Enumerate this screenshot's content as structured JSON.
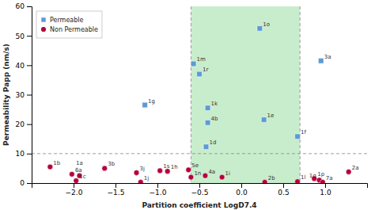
{
  "chart_data": {
    "type": "scatter",
    "x_label": "Partition coefficient LogD7.4",
    "y_label": "Permeability Papp (nm/s)",
    "xlim": [
      -2.5,
      1.5
    ],
    "ylim": [
      0,
      60
    ],
    "xticks": [
      {
        "value": -2.0,
        "label": "−2.0"
      },
      {
        "value": -1.5,
        "label": "−1.5"
      },
      {
        "value": -1.0,
        "label": "−1.0"
      },
      {
        "value": -0.5,
        "label": "−0.5"
      },
      {
        "value": 0.0,
        "label": "0.0"
      },
      {
        "value": 0.5,
        "label": "0.5"
      },
      {
        "value": 1.0,
        "label": "1.0"
      }
    ],
    "yticks": [
      0,
      10,
      20,
      30,
      40,
      50,
      60
    ],
    "grid": false,
    "legend": "upper left",
    "hlines": [
      10
    ],
    "vlines": [
      -0.6,
      0.7
    ],
    "span": {
      "x": [
        -0.6,
        0.7
      ],
      "color": "#c8edcc"
    },
    "series": [
      {
        "name": "Permeable",
        "color": "#5b9bd5",
        "marker": "square",
        "x": [
          -1.15,
          -0.57,
          -0.5,
          -0.4,
          -0.4,
          -0.42,
          0.22,
          0.27,
          0.67,
          0.95
        ],
        "values": [
          26.5,
          40.5,
          37.0,
          25.5,
          20.5,
          12.3,
          52.5,
          21.5,
          15.8,
          41.5
        ],
        "labels": [
          "1g",
          "1m",
          "1r",
          "1k",
          "4b",
          "1d",
          "1o",
          "1e",
          "1f",
          "3a"
        ]
      },
      {
        "name": "Non Permeable",
        "color": "#b5003a",
        "marker": "circle",
        "x": [
          -2.28,
          -2.02,
          -1.93,
          -1.97,
          -1.63,
          -1.25,
          -1.2,
          -0.97,
          -0.88,
          -0.63,
          -0.6,
          -0.43,
          -0.23,
          0.28,
          0.67,
          0.87,
          0.93,
          0.97,
          1.28
        ],
        "values": [
          5.5,
          3.0,
          2.5,
          0.8,
          5.0,
          3.5,
          0.3,
          4.2,
          4.0,
          4.5,
          2.0,
          2.5,
          2.0,
          0.3,
          0.5,
          1.5,
          1.0,
          0.3,
          3.8
        ],
        "labels": [
          "1b",
          "6a",
          "1a",
          "1c",
          "3b",
          "3j",
          "1j",
          "1s",
          "1h",
          "5e",
          "1n",
          "4a",
          "1i",
          "2b",
          "1l",
          "1p",
          "1q",
          "7a",
          "2a"
        ]
      }
    ]
  }
}
